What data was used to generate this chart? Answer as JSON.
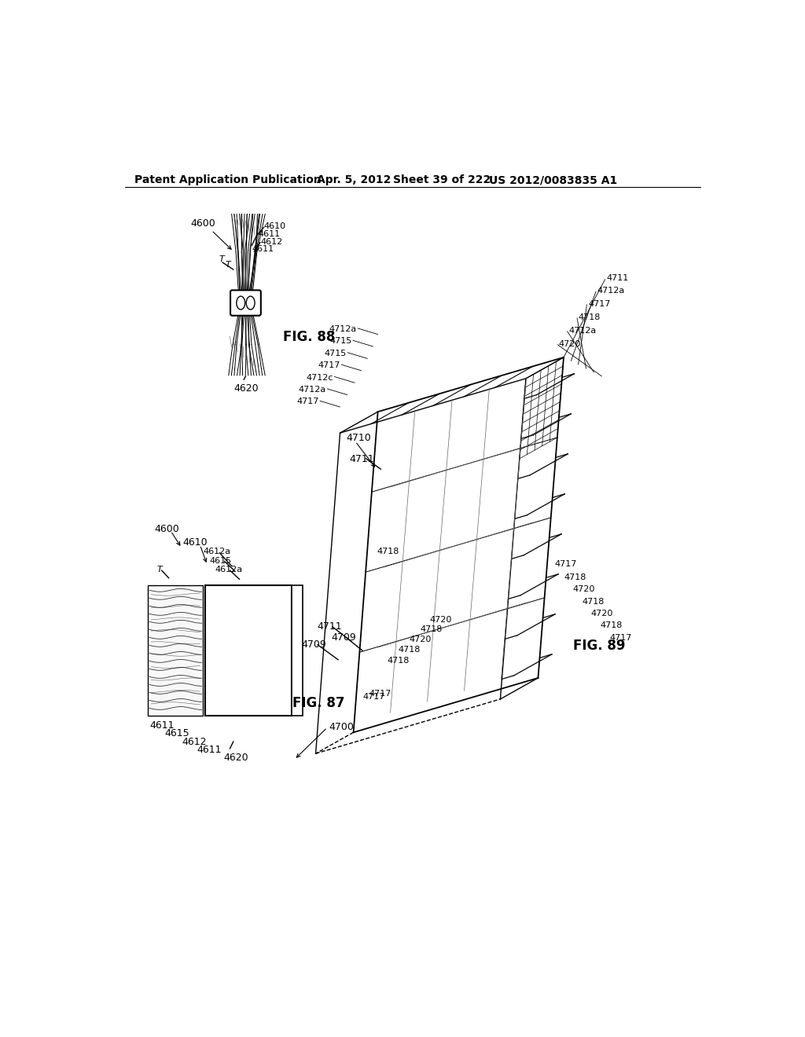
{
  "background_color": "#ffffff",
  "text_color": "#000000",
  "header_left": "Patent Application Publication",
  "header_date": "Apr. 5, 2012",
  "header_sheet": "Sheet 39 of 222",
  "header_patent": "US 2012/0083835 A1",
  "fig87_label": "FIG. 87",
  "fig88_label": "FIG. 88",
  "fig89_label": "FIG. 89"
}
